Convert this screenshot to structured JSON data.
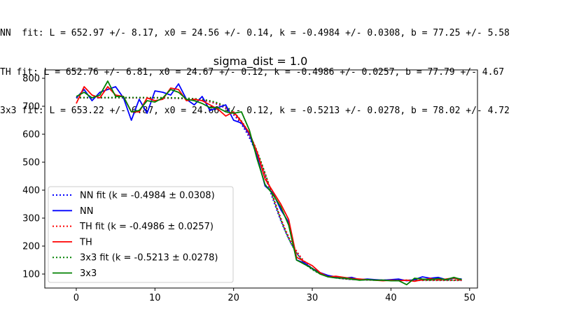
{
  "fit_text": [
    "NN  fit: L = 652.97 +/- 8.17, x0 = 24.56 +/- 0.14, k = -0.4984 +/- 0.0308, b = 77.25 +/- 5.58",
    "TH fit: L = 652.76 +/- 6.81, x0 = 24.67 +/- 0.12, k = -0.4986 +/- 0.0257, b = 77.79 +/- 4.67",
    "3x3 fit: L = 653.22 +/- 6.87, x0 = 24.66 +/- 0.12, k = -0.5213 +/- 0.0278, b = 78.02 +/- 4.72"
  ],
  "chart_data": {
    "type": "line",
    "title": "sigma_dist = 1.0",
    "xlabel": "",
    "ylabel": "",
    "xlim": [
      -4,
      51
    ],
    "ylim": [
      50,
      830
    ],
    "xticks": [
      0,
      10,
      20,
      30,
      40,
      50
    ],
    "yticks": [
      100,
      200,
      300,
      400,
      500,
      600,
      700,
      800
    ],
    "grid": false,
    "legend_position": "lower-left",
    "x": [
      0,
      1,
      2,
      3,
      4,
      5,
      6,
      7,
      8,
      9,
      10,
      11,
      12,
      13,
      14,
      15,
      16,
      17,
      18,
      19,
      20,
      21,
      22,
      23,
      24,
      25,
      26,
      27,
      28,
      29,
      30,
      31,
      32,
      33,
      34,
      35,
      36,
      37,
      38,
      39,
      40,
      41,
      42,
      43,
      44,
      45,
      46,
      47,
      48,
      49
    ],
    "fits": [
      {
        "name": "NN fit (k = -0.4984 ± 0.0308)",
        "color": "#0000ff",
        "L": 652.97,
        "x0": 24.56,
        "k": -0.4984,
        "b": 77.25
      },
      {
        "name": "TH fit (k = -0.4986 ± 0.0257)",
        "color": "#ff0000",
        "L": 652.76,
        "x0": 24.67,
        "k": -0.4986,
        "b": 77.79
      },
      {
        "name": "3x3 fit (k = -0.5213 ± 0.0278)",
        "color": "#008000",
        "L": 653.22,
        "x0": 24.66,
        "k": -0.5213,
        "b": 78.02
      }
    ],
    "series": [
      {
        "name": "NN",
        "color": "#0000ff",
        "values": [
          730,
          760,
          720,
          750,
          760,
          770,
          730,
          650,
          725,
          675,
          755,
          750,
          740,
          780,
          725,
          705,
          735,
          685,
          695,
          705,
          650,
          640,
          600,
          520,
          415,
          390,
          330,
          285,
          150,
          140,
          120,
          105,
          95,
          90,
          85,
          88,
          80,
          82,
          80,
          78,
          80,
          82,
          76,
          80,
          90,
          85,
          88,
          80,
          85,
          82
        ]
      },
      {
        "name": "TH",
        "color": "#ff0000",
        "values": [
          710,
          770,
          740,
          730,
          770,
          740,
          735,
          680,
          680,
          730,
          720,
          725,
          765,
          760,
          720,
          725,
          720,
          705,
          690,
          665,
          680,
          645,
          605,
          535,
          440,
          395,
          350,
          295,
          160,
          145,
          130,
          105,
          90,
          92,
          88,
          84,
          82,
          80,
          78,
          76,
          78,
          76,
          78,
          74,
          80,
          84,
          80,
          82,
          86,
          78
        ]
      },
      {
        "name": "3x3",
        "color": "#008000",
        "values": [
          735,
          750,
          730,
          740,
          790,
          735,
          735,
          680,
          685,
          720,
          715,
          730,
          760,
          750,
          725,
          720,
          710,
          695,
          695,
          680,
          675,
          680,
          615,
          510,
          420,
          385,
          340,
          275,
          150,
          135,
          120,
          100,
          90,
          86,
          86,
          82,
          78,
          80,
          78,
          78,
          76,
          76,
          62,
          85,
          82,
          80,
          84,
          80,
          88,
          80
        ]
      }
    ]
  }
}
